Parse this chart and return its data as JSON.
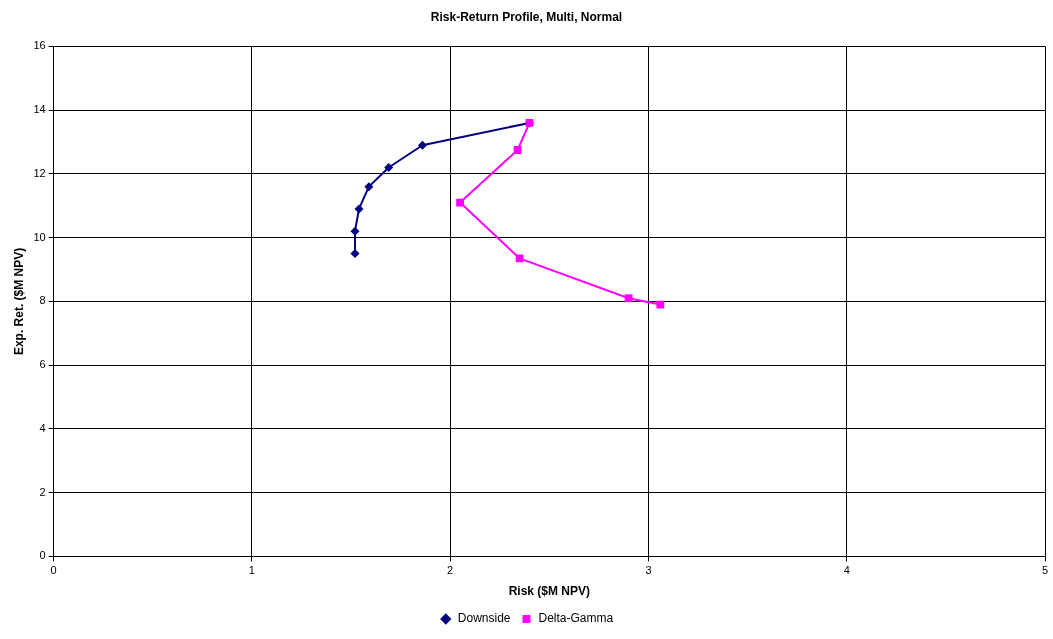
{
  "chart_data": {
    "type": "line",
    "title": "Risk-Return Profile, Multi, Normal",
    "xlabel": "Risk ($M NPV)",
    "ylabel": "Exp. Ret. ($M NPV)",
    "xlim": [
      0,
      5
    ],
    "xticks": [
      0,
      1,
      2,
      3,
      4,
      5
    ],
    "ylim": [
      0,
      16
    ],
    "yticks": [
      0,
      2,
      4,
      6,
      8,
      10,
      12,
      14,
      16
    ],
    "grid": true,
    "legend": "bottom",
    "series": [
      {
        "name": "Downside",
        "color": "#000080",
        "marker": "diamond",
        "x": [
          1.52,
          1.52,
          1.54,
          1.59,
          1.69,
          1.86,
          2.4
        ],
        "values": [
          9.5,
          10.2,
          10.9,
          11.6,
          12.2,
          12.9,
          13.6
        ]
      },
      {
        "name": "Delta-Gamma",
        "color": "#ff00ff",
        "marker": "square",
        "x": [
          2.4,
          2.34,
          2.05,
          2.35,
          2.9,
          3.06
        ],
        "values": [
          13.6,
          12.75,
          11.1,
          9.35,
          8.1,
          7.9
        ]
      }
    ]
  }
}
